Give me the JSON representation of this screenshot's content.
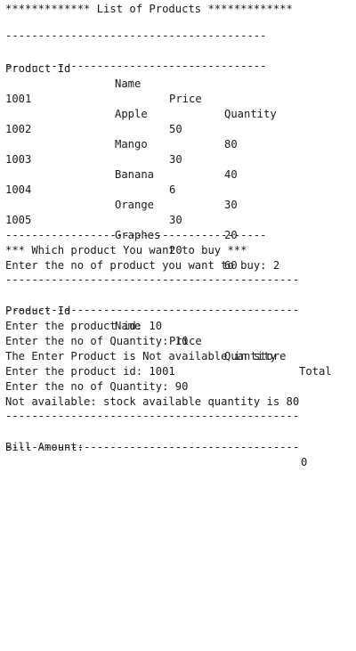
{
  "title": "************* List of Products *************",
  "table1": {
    "headers": [
      "Product Id",
      "Name",
      "Price",
      "Quantity"
    ],
    "rows": [
      [
        "1001",
        "Apple",
        "50",
        "80"
      ],
      [
        "1002",
        "Mango",
        "30",
        "40"
      ],
      [
        "1003",
        "Banana",
        "6",
        "30"
      ],
      [
        "1004",
        "Orange",
        "30",
        "20"
      ],
      [
        "1005",
        "Graphes",
        "20",
        "60"
      ]
    ],
    "separator": "----------------------------------------"
  },
  "prompt": {
    "question": "*** Which product You want to buy ***",
    "count_line": "Enter the no of product you want to buy: 2"
  },
  "table2": {
    "separator": "---------------------------------------------",
    "headers": [
      "Product Id",
      "Name",
      "Price",
      "Quantity",
      "Total"
    ]
  },
  "log": [
    "Enter the product id: 10",
    "Enter the no of Quantity: 10",
    "The Enter Product is Not available in store",
    "Enter the product id: 1001",
    "Enter the no of Quantity: 90",
    "Not available: stock available quantity is 80"
  ],
  "bill": {
    "label": "Bill Amount:",
    "value": "0"
  }
}
